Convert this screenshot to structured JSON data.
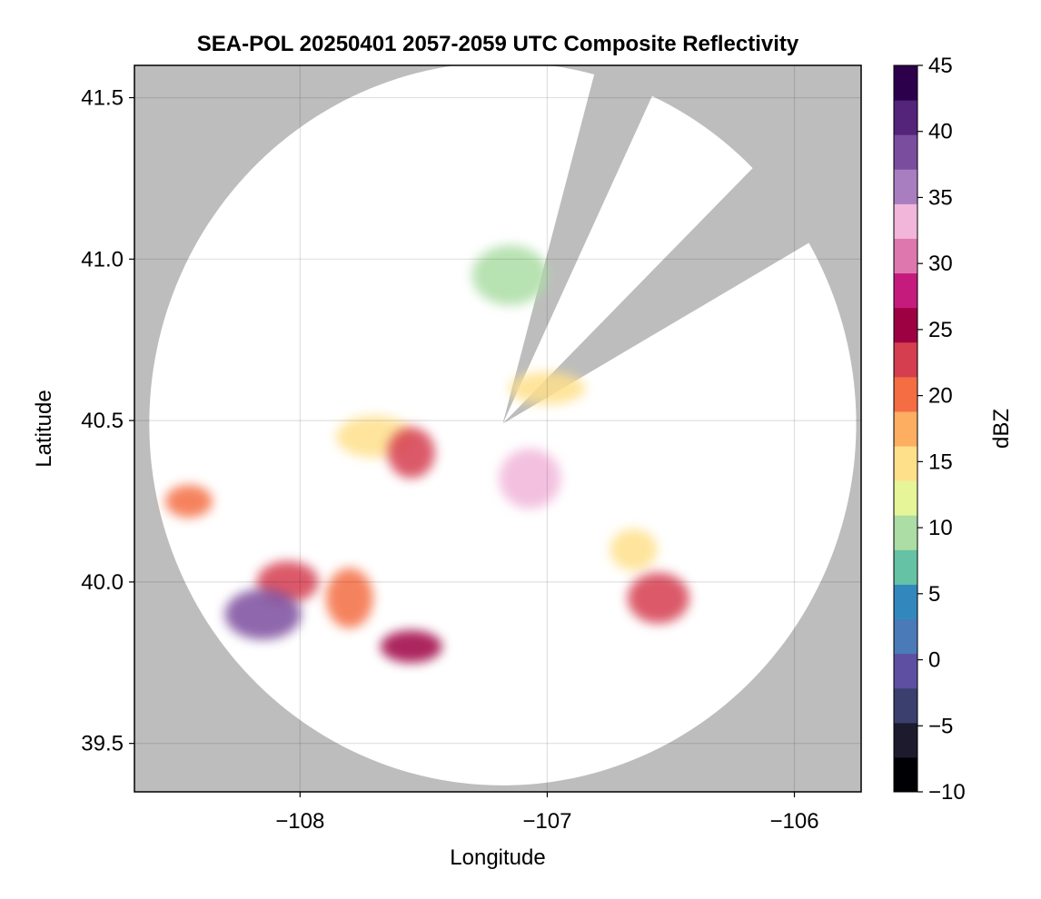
{
  "chart_data": {
    "type": "heatmap",
    "title": "SEA-POL 20250401 2057-2059 UTC Composite Reflectivity",
    "xlabel": "Longitude",
    "ylabel": "Latitude",
    "xlim": [
      -108.67,
      -105.73
    ],
    "ylim": [
      39.35,
      41.6
    ],
    "xticks": [
      -108,
      -107,
      -106
    ],
    "xtick_labels": [
      "−108",
      "−107",
      "−106"
    ],
    "yticks": [
      39.5,
      40.0,
      40.5,
      41.0,
      41.5
    ],
    "ytick_labels": [
      "39.5",
      "40.0",
      "40.5",
      "41.0",
      "41.5"
    ],
    "grid": true,
    "background": "#bdbdbd",
    "radar": {
      "center_lon": -107.18,
      "center_lat": 40.49,
      "range_deg_lon": 1.43,
      "range_deg_lat": 1.12,
      "blocked_sectors_deg_from_north": [
        [
          15,
          25
        ],
        [
          45,
          60
        ]
      ]
    },
    "colorbar": {
      "label": "dBZ",
      "min": -10,
      "max": 45,
      "ticks": [
        -10,
        -5,
        0,
        5,
        10,
        15,
        20,
        25,
        30,
        35,
        40,
        45
      ],
      "tick_labels": [
        "−10",
        "−5",
        "0",
        "5",
        "10",
        "15",
        "20",
        "25",
        "30",
        "35",
        "40",
        "45"
      ],
      "colormap": [
        "#000004",
        "#1d1a2e",
        "#3b3f6e",
        "#5e4fa2",
        "#4a7ab8",
        "#3288bd",
        "#66c2a5",
        "#abdda4",
        "#e6f598",
        "#fee08b",
        "#fdae61",
        "#f46d43",
        "#d53e4f",
        "#9e0142",
        "#c51b7d",
        "#de77ae",
        "#f1b6da",
        "#a87ec0",
        "#7b4d9e",
        "#54237a",
        "#2d004b"
      ]
    },
    "echo_regions": [
      {
        "lon": -108.45,
        "lat": 40.25,
        "dbz": 20
      },
      {
        "lon": -108.05,
        "lat": 40.0,
        "dbz": 24
      },
      {
        "lon": -108.15,
        "lat": 39.9,
        "dbz": 38
      },
      {
        "lon": -107.8,
        "lat": 39.95,
        "dbz": 20
      },
      {
        "lon": -107.55,
        "lat": 39.8,
        "dbz": 26
      },
      {
        "lon": -107.7,
        "lat": 40.45,
        "dbz": 14
      },
      {
        "lon": -107.55,
        "lat": 40.4,
        "dbz": 22
      },
      {
        "lon": -107.07,
        "lat": 40.32,
        "dbz": 33
      },
      {
        "lon": -107.0,
        "lat": 40.6,
        "dbz": 14
      },
      {
        "lon": -106.65,
        "lat": 40.1,
        "dbz": 16
      },
      {
        "lon": -106.55,
        "lat": 39.95,
        "dbz": 22
      },
      {
        "lon": -107.15,
        "lat": 40.95,
        "dbz": 10
      }
    ]
  }
}
